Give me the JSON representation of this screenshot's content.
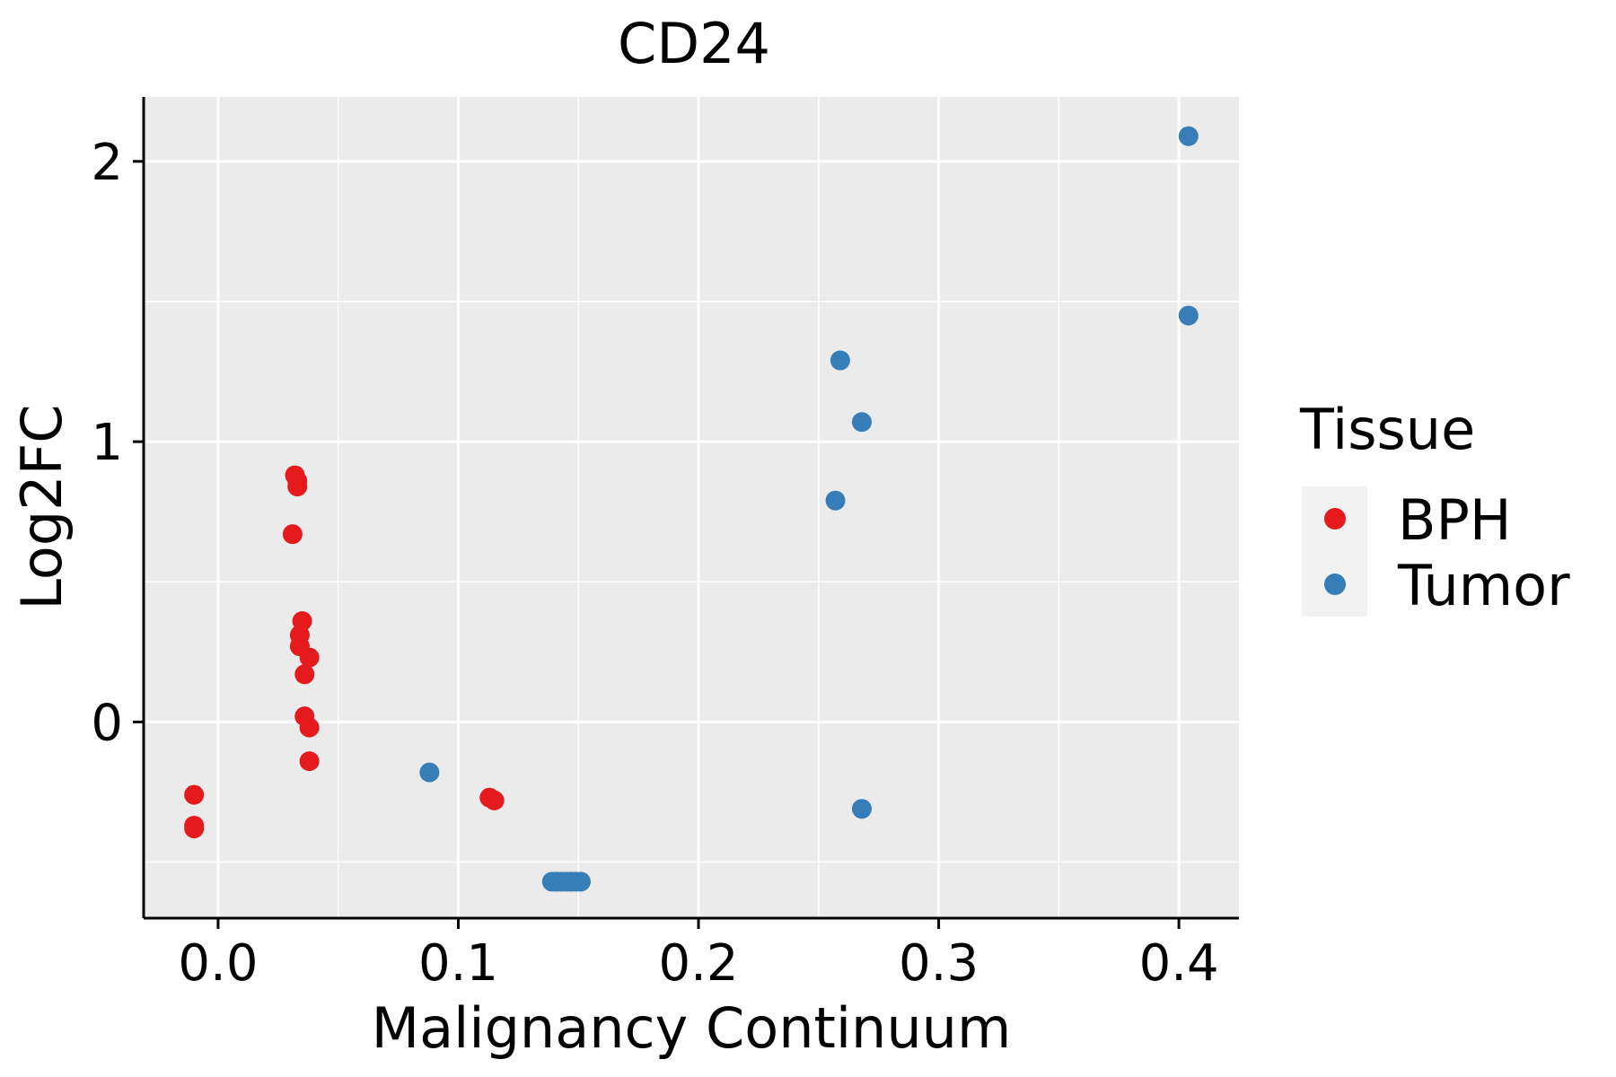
{
  "chart_data": {
    "type": "scatter",
    "title": "CD24",
    "xlabel": "Malignancy Continuum",
    "ylabel": "Log2FC",
    "xlim": [
      -0.031,
      0.425
    ],
    "ylim": [
      -0.7,
      2.23
    ],
    "x_ticks": [
      0.0,
      0.1,
      0.2,
      0.3,
      0.4
    ],
    "x_tick_labels": [
      "0.0",
      "0.1",
      "0.2",
      "0.3",
      "0.4"
    ],
    "y_ticks": [
      0,
      1,
      2
    ],
    "y_tick_labels": [
      "0",
      "1",
      "2"
    ],
    "x_minor_ticks": [
      0.05,
      0.15,
      0.25,
      0.35
    ],
    "y_minor_ticks": [
      -0.5,
      0.5,
      1.5
    ],
    "grid": true,
    "legend": {
      "title": "Tissue",
      "position": "right",
      "entries": [
        {
          "label": "BPH",
          "color": "#E41A1C"
        },
        {
          "label": "Tumor",
          "color": "#377EB8"
        }
      ]
    },
    "series": [
      {
        "name": "BPH",
        "color": "#E41A1C",
        "points": [
          {
            "x": -0.01,
            "y": -0.26
          },
          {
            "x": -0.01,
            "y": -0.37
          },
          {
            "x": -0.01,
            "y": -0.38
          },
          {
            "x": 0.031,
            "y": 0.67
          },
          {
            "x": 0.032,
            "y": 0.88
          },
          {
            "x": 0.033,
            "y": 0.86
          },
          {
            "x": 0.033,
            "y": 0.84
          },
          {
            "x": 0.035,
            "y": 0.36
          },
          {
            "x": 0.034,
            "y": 0.31
          },
          {
            "x": 0.034,
            "y": 0.27
          },
          {
            "x": 0.038,
            "y": 0.23
          },
          {
            "x": 0.036,
            "y": 0.17
          },
          {
            "x": 0.036,
            "y": 0.02
          },
          {
            "x": 0.038,
            "y": -0.02
          },
          {
            "x": 0.038,
            "y": -0.14
          },
          {
            "x": 0.113,
            "y": -0.27
          },
          {
            "x": 0.115,
            "y": -0.28
          }
        ]
      },
      {
        "name": "Tumor",
        "color": "#377EB8",
        "points": [
          {
            "x": 0.088,
            "y": -0.18
          },
          {
            "x": 0.139,
            "y": -0.57
          },
          {
            "x": 0.141,
            "y": -0.57
          },
          {
            "x": 0.143,
            "y": -0.57
          },
          {
            "x": 0.145,
            "y": -0.57
          },
          {
            "x": 0.147,
            "y": -0.57
          },
          {
            "x": 0.149,
            "y": -0.57
          },
          {
            "x": 0.151,
            "y": -0.57
          },
          {
            "x": 0.257,
            "y": 0.79
          },
          {
            "x": 0.259,
            "y": 1.29
          },
          {
            "x": 0.268,
            "y": 1.07
          },
          {
            "x": 0.268,
            "y": -0.31
          },
          {
            "x": 0.404,
            "y": 2.09
          },
          {
            "x": 0.404,
            "y": 1.45
          }
        ]
      }
    ]
  }
}
